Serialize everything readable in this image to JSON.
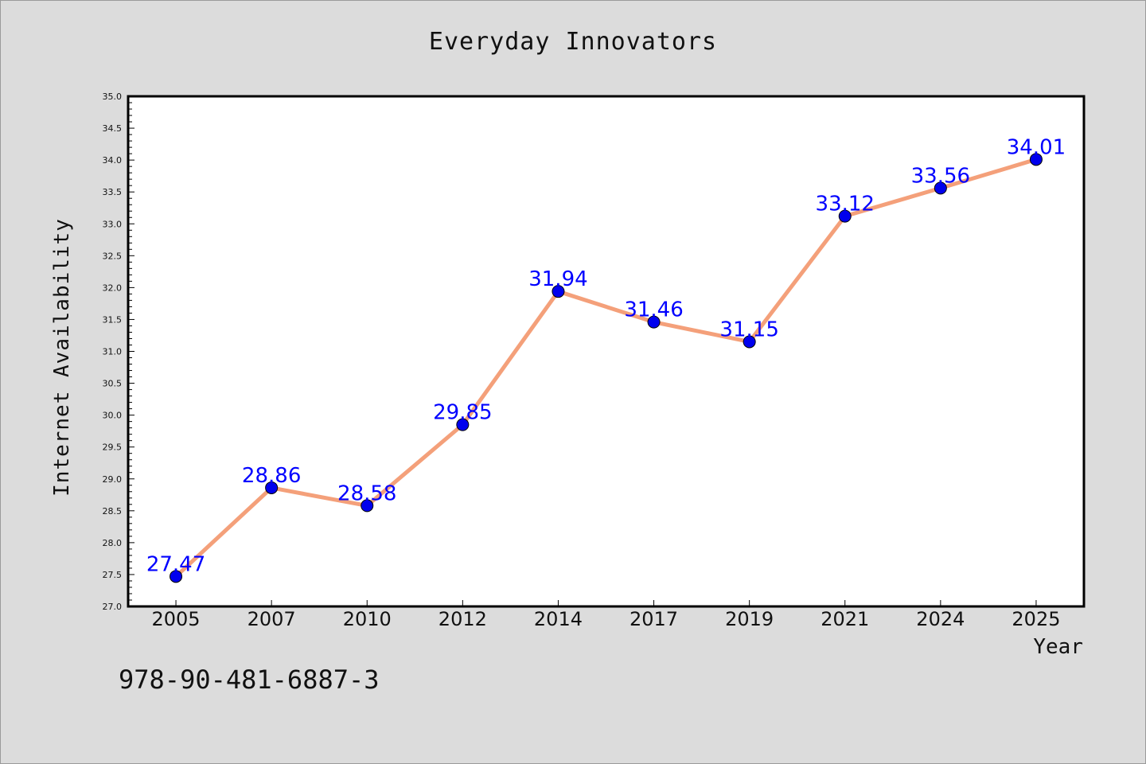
{
  "chart_data": {
    "type": "line",
    "title": "Everyday Innovators",
    "xlabel": "Year",
    "ylabel": "Internet Availability",
    "categories": [
      "2005",
      "2007",
      "2010",
      "2012",
      "2014",
      "2017",
      "2019",
      "2021",
      "2024",
      "2025"
    ],
    "values": [
      27.47,
      28.86,
      28.58,
      29.85,
      31.94,
      31.46,
      31.15,
      33.12,
      33.56,
      34.01
    ],
    "value_labels": [
      "27.47",
      "28.86",
      "28.58",
      "29.85",
      "31.94",
      "31.46",
      "31.15",
      "33.12",
      "33.56",
      "34.01"
    ],
    "ylim": [
      27.0,
      35.0
    ],
    "yticks": [
      "27.0",
      "27.5",
      "28.0",
      "28.5",
      "29.0",
      "29.5",
      "30.0",
      "30.5",
      "31.0",
      "31.5",
      "32.0",
      "32.5",
      "33.0",
      "33.5",
      "34.0",
      "34.5",
      "35.0"
    ],
    "grid": false,
    "line_color": "#f4a07a",
    "marker_color": "#0000ee",
    "label_color": "#0000ff",
    "background_color": "#dcdcdc",
    "plot_background": "#ffffff"
  },
  "caption": "978-90-481-6887-3"
}
